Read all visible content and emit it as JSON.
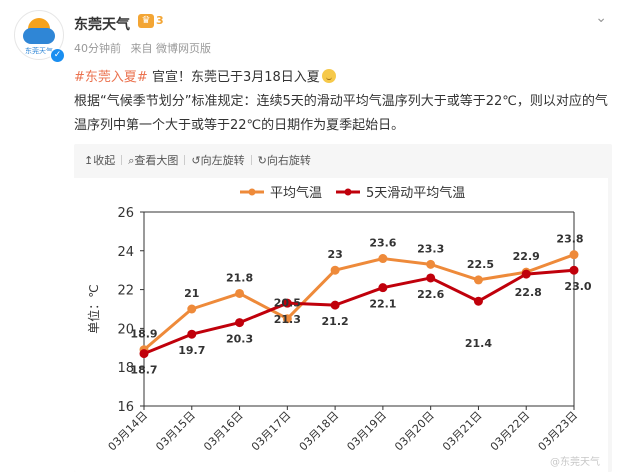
{
  "account": {
    "name": "东莞天气",
    "avatar_brand": "东莞天气",
    "vip_level": "3",
    "time": "40分钟前",
    "source": "来自 微博网页版"
  },
  "post": {
    "tag": "#东莞入夏#",
    "headline": "官宣！东莞已于3月18日入夏",
    "body": "根据“气候季节划分”标准规定：连续5天的滑动平均气温序列大于或等于22℃，则以对应的气温序列中第一个大于或等于22℃的日期作为夏季起始日。"
  },
  "toolbar": {
    "collapse": "收起",
    "view_large": "查看大图",
    "rotate_left": "向左旋转",
    "rotate_right": "向右旋转"
  },
  "icons": {
    "collapse": "arrow-up-icon",
    "view_large": "magnifier-icon",
    "rotate_left": "rotate-left-icon",
    "rotate_right": "rotate-right-icon",
    "more": "chevron-down-icon"
  },
  "colors": {
    "series_avg": "#ee8a3a",
    "series_5day": "#c0000b",
    "tag": "#eb7350"
  },
  "watermark": "@东莞天气",
  "chart_data": {
    "type": "line",
    "ylabel": "单位：℃",
    "ylim": [
      16,
      26
    ],
    "yticks": [
      16,
      18,
      20,
      22,
      24,
      26
    ],
    "grid": false,
    "legend": "top-center",
    "categories": [
      "03月14日",
      "03月15日",
      "03月16日",
      "03月17日",
      "03月18日",
      "03月19日",
      "03月20日",
      "03月21日",
      "03月22日",
      "03月23日"
    ],
    "series": [
      {
        "name": "平均气温",
        "values": [
          18.9,
          21,
          21.8,
          20.5,
          23,
          23.6,
          23.3,
          22.5,
          22.9,
          23.8
        ],
        "labels": [
          "18.9",
          "21",
          "21.8",
          "20.5",
          "23",
          "23.6",
          "23.3",
          "22.5",
          "22.9",
          "23.8"
        ]
      },
      {
        "name": "5天滑动平均气温",
        "values": [
          18.7,
          19.7,
          20.3,
          21.3,
          21.2,
          22.1,
          22.6,
          21.4,
          22.8,
          23.0
        ],
        "labels": [
          "18.7",
          "19.7",
          "20.3",
          "21.3",
          "21.2",
          "22.1",
          "22.6",
          "21.4",
          "22.8",
          "23.0"
        ]
      }
    ]
  }
}
